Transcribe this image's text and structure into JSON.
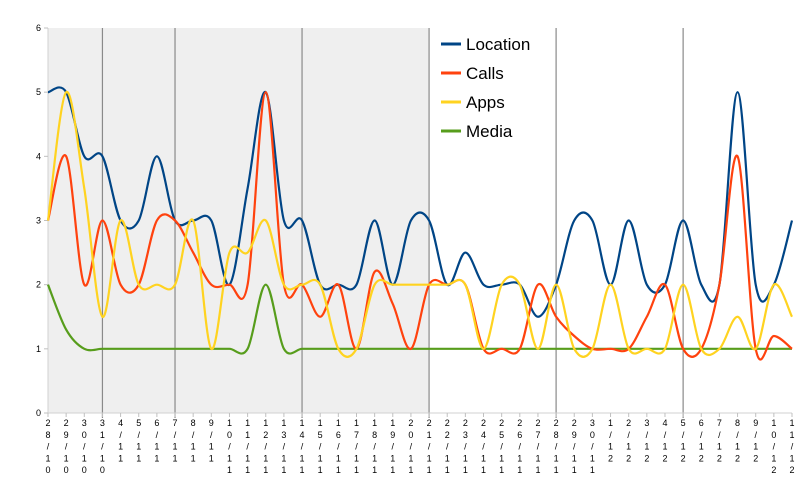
{
  "chart_data": {
    "type": "line",
    "title": "",
    "xlabel": "",
    "ylabel": "",
    "ylim": [
      0,
      6
    ],
    "yticks": [
      "0",
      "1",
      "2",
      "3",
      "4",
      "5",
      "6"
    ],
    "grid": false,
    "legend_position": "top-right",
    "shaded_range": [
      "28/10",
      "21/11"
    ],
    "week_markers": [
      "31/10",
      "7/11",
      "14/11",
      "21/11",
      "28/11",
      "5/12"
    ],
    "categories": [
      "28/10",
      "29/10",
      "30/10",
      "31/10",
      "4/11",
      "5/11",
      "6/11",
      "7/11",
      "8/11",
      "9/11",
      "10/11",
      "11/11",
      "12/11",
      "13/11",
      "14/11",
      "15/11",
      "16/11",
      "17/11",
      "18/11",
      "19/11",
      "20/11",
      "21/11",
      "22/11",
      "23/11",
      "24/11",
      "25/11",
      "26/11",
      "27/11",
      "28/11",
      "29/11",
      "30/11",
      "1/12",
      "2/12",
      "3/12",
      "4/12",
      "5/12",
      "6/12",
      "7/12",
      "8/12",
      "9/12",
      "10/12",
      "11/12"
    ],
    "series": [
      {
        "name": "Location",
        "color": "#004586",
        "values": [
          5,
          5,
          4,
          4,
          3,
          3,
          4,
          3,
          3,
          3,
          2,
          3.5,
          5,
          3,
          3,
          2,
          2,
          2,
          3,
          2,
          3,
          3,
          2,
          2.5,
          2,
          2,
          2,
          1.5,
          2,
          3,
          3,
          2,
          3,
          2,
          2,
          3,
          2,
          2,
          5,
          2,
          2,
          3
        ]
      },
      {
        "name": "Calls",
        "color": "#ff420e",
        "values": [
          3,
          4,
          2,
          3,
          2,
          2,
          3,
          3,
          2.5,
          2,
          2,
          2,
          5,
          2,
          2,
          1.5,
          2,
          1,
          2.2,
          1.7,
          1,
          2,
          2,
          2,
          1,
          1,
          1,
          2,
          1.5,
          1.2,
          1,
          1,
          1,
          1.5,
          2,
          1,
          1,
          2,
          4,
          1,
          1.2,
          1
        ]
      },
      {
        "name": "Apps",
        "color": "#ffd320",
        "values": [
          3,
          5,
          3.5,
          1.5,
          3,
          2,
          2,
          2,
          3,
          1,
          2.5,
          2.5,
          3,
          2,
          2,
          2,
          1,
          1,
          2,
          2,
          2,
          2,
          2,
          2,
          1,
          2,
          2,
          1,
          2,
          1,
          1,
          2,
          1,
          1,
          1,
          2,
          1,
          1,
          1.5,
          1,
          2,
          1.5
        ]
      },
      {
        "name": "Media",
        "color": "#579d1c",
        "values": [
          2,
          1.3,
          1,
          1,
          1,
          1,
          1,
          1,
          1,
          1,
          1,
          1,
          2,
          1,
          1,
          1,
          1,
          1,
          1,
          1,
          1,
          1,
          1,
          1,
          1,
          1,
          1,
          1,
          1,
          1,
          1,
          1,
          1,
          1,
          1,
          1,
          1,
          1,
          1,
          1,
          1,
          1
        ]
      }
    ]
  }
}
